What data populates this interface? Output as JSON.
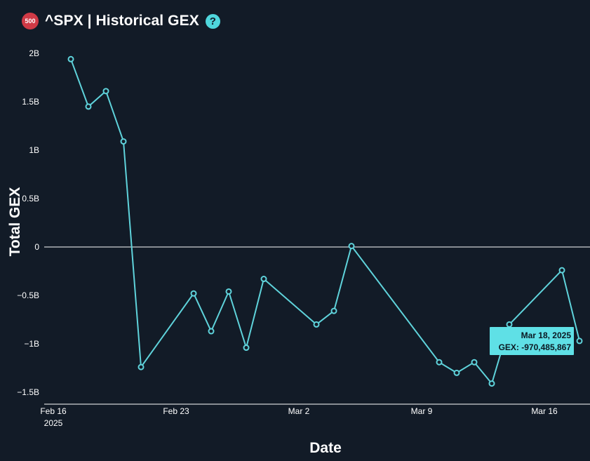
{
  "header": {
    "logo_badge": "500",
    "title": "^SPX | Historical GEX",
    "help_glyph": "?"
  },
  "colors": {
    "background": "#121b27",
    "line": "#5fd3db",
    "tooltip_bg": "#5fe0e6",
    "tooltip_text": "#0b1822",
    "badge": "#d03a46",
    "help": "#4fd6dc"
  },
  "tooltip": {
    "date": "Mar 18, 2025",
    "value": "GEX: -970,485,867"
  },
  "chart_data": {
    "type": "line",
    "title": "",
    "xlabel": "Date",
    "ylabel": "Total GEX",
    "ylim": [
      -1500000000.0,
      2000000000.0
    ],
    "xlim": [
      "2025-02-16",
      "2025-03-18"
    ],
    "grid": false,
    "zero_line": true,
    "y_ticks": [
      {
        "value": 2000000000.0,
        "label": "2B"
      },
      {
        "value": 1500000000.0,
        "label": "1.5B"
      },
      {
        "value": 1000000000.0,
        "label": "1B"
      },
      {
        "value": 500000000.0,
        "label": "0.5B"
      },
      {
        "value": 0,
        "label": "0"
      },
      {
        "value": -500000000.0,
        "label": "−0.5B"
      },
      {
        "value": -1000000000.0,
        "label": "−1B"
      },
      {
        "value": -1500000000.0,
        "label": "−1.5B"
      }
    ],
    "x_ticks": [
      {
        "date": "2025-02-16",
        "label": "Feb 16",
        "sub": "2025"
      },
      {
        "date": "2025-02-23",
        "label": "Feb 23",
        "sub": ""
      },
      {
        "date": "2025-03-02",
        "label": "Mar 2",
        "sub": ""
      },
      {
        "date": "2025-03-09",
        "label": "Mar 9",
        "sub": ""
      },
      {
        "date": "2025-03-16",
        "label": "Mar 16",
        "sub": ""
      }
    ],
    "points": [
      {
        "date": "2025-02-17",
        "value": 1940000000.0
      },
      {
        "date": "2025-02-18",
        "value": 1450000000.0
      },
      {
        "date": "2025-02-19",
        "value": 1610000000.0
      },
      {
        "date": "2025-02-20",
        "value": 1090000000.0
      },
      {
        "date": "2025-02-21",
        "value": -1240000000.0
      },
      {
        "date": "2025-02-24",
        "value": -480000000.0
      },
      {
        "date": "2025-02-25",
        "value": -870000000.0
      },
      {
        "date": "2025-02-26",
        "value": -460000000.0
      },
      {
        "date": "2025-02-27",
        "value": -1040000000.0
      },
      {
        "date": "2025-02-28",
        "value": -330000000.0
      },
      {
        "date": "2025-03-03",
        "value": -800000000.0
      },
      {
        "date": "2025-03-04",
        "value": -660000000.0
      },
      {
        "date": "2025-03-05",
        "value": 10000000.0
      },
      {
        "date": "2025-03-10",
        "value": -1190000000.0
      },
      {
        "date": "2025-03-11",
        "value": -1300000000.0
      },
      {
        "date": "2025-03-12",
        "value": -1190000000.0
      },
      {
        "date": "2025-03-13",
        "value": -1410000000.0
      },
      {
        "date": "2025-03-14",
        "value": -800000000.0
      },
      {
        "date": "2025-03-17",
        "value": -240000000.0
      },
      {
        "date": "2025-03-18",
        "value": -970485867.0
      }
    ]
  }
}
